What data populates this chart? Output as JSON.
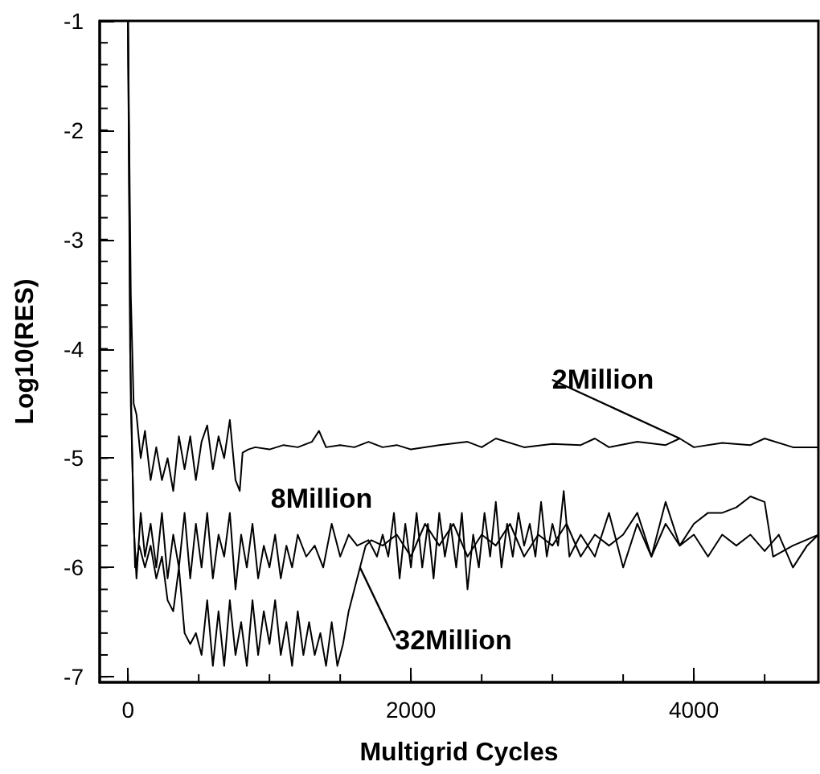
{
  "chart_data": {
    "type": "line",
    "xlabel": "Multigrid Cycles",
    "ylabel": "Log10(RES)",
    "xlim": [
      -200,
      4880
    ],
    "xticks": [
      0,
      2000,
      4000
    ],
    "ylim": [
      -7.05,
      -1
    ],
    "yticks": [
      -7,
      -6,
      -5,
      -4,
      -3,
      -2,
      -1
    ],
    "grid": false,
    "legend": false,
    "marker": "none",
    "line_style": "solid",
    "series": [
      {
        "name": "2Million",
        "color": "#000000",
        "x": [
          0,
          20,
          40,
          60,
          90,
          120,
          160,
          200,
          240,
          280,
          320,
          360,
          400,
          440,
          480,
          520,
          560,
          600,
          640,
          680,
          720,
          760,
          790,
          810,
          850,
          900,
          1000,
          1100,
          1200,
          1300,
          1350,
          1400,
          1500,
          1600,
          1700,
          1800,
          1900,
          2000,
          2200,
          2400,
          2500,
          2600,
          2800,
          3000,
          3200,
          3300,
          3400,
          3600,
          3800,
          3900,
          4000,
          4200,
          4400,
          4500,
          4700,
          4880
        ],
        "values": [
          -1,
          -3.5,
          -4.5,
          -4.6,
          -5.0,
          -4.75,
          -5.2,
          -4.9,
          -5.2,
          -5.0,
          -5.3,
          -4.8,
          -5.1,
          -4.8,
          -5.2,
          -4.85,
          -4.7,
          -5.1,
          -4.8,
          -5.0,
          -4.65,
          -5.2,
          -5.3,
          -4.95,
          -4.92,
          -4.9,
          -4.92,
          -4.88,
          -4.9,
          -4.85,
          -4.75,
          -4.9,
          -4.88,
          -4.9,
          -4.85,
          -4.9,
          -4.88,
          -4.92,
          -4.88,
          -4.85,
          -4.9,
          -4.82,
          -4.9,
          -4.87,
          -4.88,
          -4.82,
          -4.9,
          -4.85,
          -4.88,
          -4.82,
          -4.9,
          -4.86,
          -4.88,
          -4.82,
          -4.9,
          -4.9
        ]
      },
      {
        "name": "8Million",
        "color": "#000000",
        "x": [
          0,
          15,
          40,
          60,
          90,
          120,
          160,
          200,
          240,
          280,
          320,
          360,
          400,
          440,
          480,
          520,
          560,
          600,
          640,
          680,
          720,
          760,
          800,
          840,
          880,
          920,
          960,
          1000,
          1040,
          1080,
          1120,
          1160,
          1200,
          1260,
          1320,
          1380,
          1440,
          1500,
          1560,
          1620,
          1700,
          1760,
          1800,
          1840,
          1880,
          1920,
          1960,
          2000,
          2040,
          2080,
          2120,
          2160,
          2200,
          2240,
          2280,
          2320,
          2360,
          2400,
          2440,
          2480,
          2520,
          2560,
          2600,
          2640,
          2680,
          2720,
          2760,
          2800,
          2840,
          2880,
          2920,
          2960,
          3000,
          3040,
          3080,
          3120,
          3200,
          3300,
          3400,
          3500,
          3600,
          3700,
          3800,
          3900,
          4000,
          4100,
          4200,
          4300,
          4400,
          4500,
          4600,
          4700,
          4800,
          4880
        ],
        "values": [
          -1,
          -4,
          -5.6,
          -6.1,
          -5.5,
          -5.9,
          -5.6,
          -6.0,
          -5.5,
          -6.1,
          -5.7,
          -6.0,
          -5.5,
          -6.1,
          -5.6,
          -6.0,
          -5.5,
          -6.1,
          -5.7,
          -5.9,
          -5.5,
          -6.2,
          -5.7,
          -6.0,
          -5.6,
          -6.1,
          -5.8,
          -6.0,
          -5.7,
          -6.1,
          -5.8,
          -6.0,
          -5.7,
          -5.9,
          -5.8,
          -6.0,
          -5.6,
          -5.9,
          -5.7,
          -5.8,
          -5.75,
          -5.9,
          -5.7,
          -5.9,
          -5.5,
          -6.1,
          -5.6,
          -6.0,
          -5.5,
          -6.0,
          -5.6,
          -6.1,
          -5.5,
          -5.9,
          -5.6,
          -6.0,
          -5.5,
          -6.2,
          -5.7,
          -6.0,
          -5.5,
          -5.9,
          -5.4,
          -6.0,
          -5.6,
          -5.9,
          -5.5,
          -5.8,
          -5.6,
          -5.9,
          -5.4,
          -5.9,
          -5.6,
          -5.8,
          -5.3,
          -5.9,
          -5.7,
          -5.9,
          -5.5,
          -6.0,
          -5.6,
          -5.9,
          -5.6,
          -5.8,
          -5.7,
          -5.9,
          -5.7,
          -5.8,
          -5.7,
          -5.85,
          -5.7,
          -6.0,
          -5.8,
          -5.7
        ]
      },
      {
        "name": "32Million",
        "color": "#000000",
        "x": [
          0,
          20,
          50,
          80,
          120,
          160,
          200,
          240,
          280,
          320,
          360,
          400,
          440,
          480,
          520,
          560,
          600,
          640,
          680,
          720,
          760,
          800,
          840,
          880,
          920,
          960,
          1000,
          1040,
          1080,
          1120,
          1160,
          1200,
          1240,
          1280,
          1320,
          1360,
          1400,
          1440,
          1480,
          1520,
          1560,
          1600,
          1640,
          1680,
          1720,
          1800,
          1900,
          2000,
          2100,
          2200,
          2300,
          2400,
          2500,
          2600,
          2700,
          2800,
          2900,
          3000,
          3100,
          3200,
          3300,
          3400,
          3500,
          3600,
          3700,
          3800,
          3900,
          4000,
          4100,
          4200,
          4300,
          4400,
          4500,
          4560,
          4700,
          4880
        ],
        "values": [
          -1,
          -4.5,
          -6.0,
          -5.8,
          -6.0,
          -5.8,
          -6.1,
          -5.9,
          -6.3,
          -6.4,
          -6.0,
          -6.6,
          -6.7,
          -6.6,
          -6.8,
          -6.3,
          -6.9,
          -6.4,
          -6.9,
          -6.3,
          -6.8,
          -6.5,
          -6.9,
          -6.3,
          -6.8,
          -6.4,
          -6.7,
          -6.3,
          -6.8,
          -6.5,
          -6.9,
          -6.4,
          -6.8,
          -6.5,
          -6.8,
          -6.6,
          -6.9,
          -6.5,
          -6.9,
          -6.7,
          -6.4,
          -6.2,
          -6.0,
          -5.8,
          -5.75,
          -5.8,
          -5.7,
          -5.9,
          -5.6,
          -5.8,
          -5.6,
          -5.9,
          -5.7,
          -5.8,
          -5.6,
          -5.9,
          -5.7,
          -5.8,
          -5.6,
          -5.9,
          -5.7,
          -5.8,
          -5.7,
          -5.5,
          -5.9,
          -5.4,
          -5.8,
          -5.6,
          -5.5,
          -5.5,
          -5.45,
          -5.35,
          -5.4,
          -5.9,
          -5.8,
          -5.7
        ]
      }
    ]
  }
}
